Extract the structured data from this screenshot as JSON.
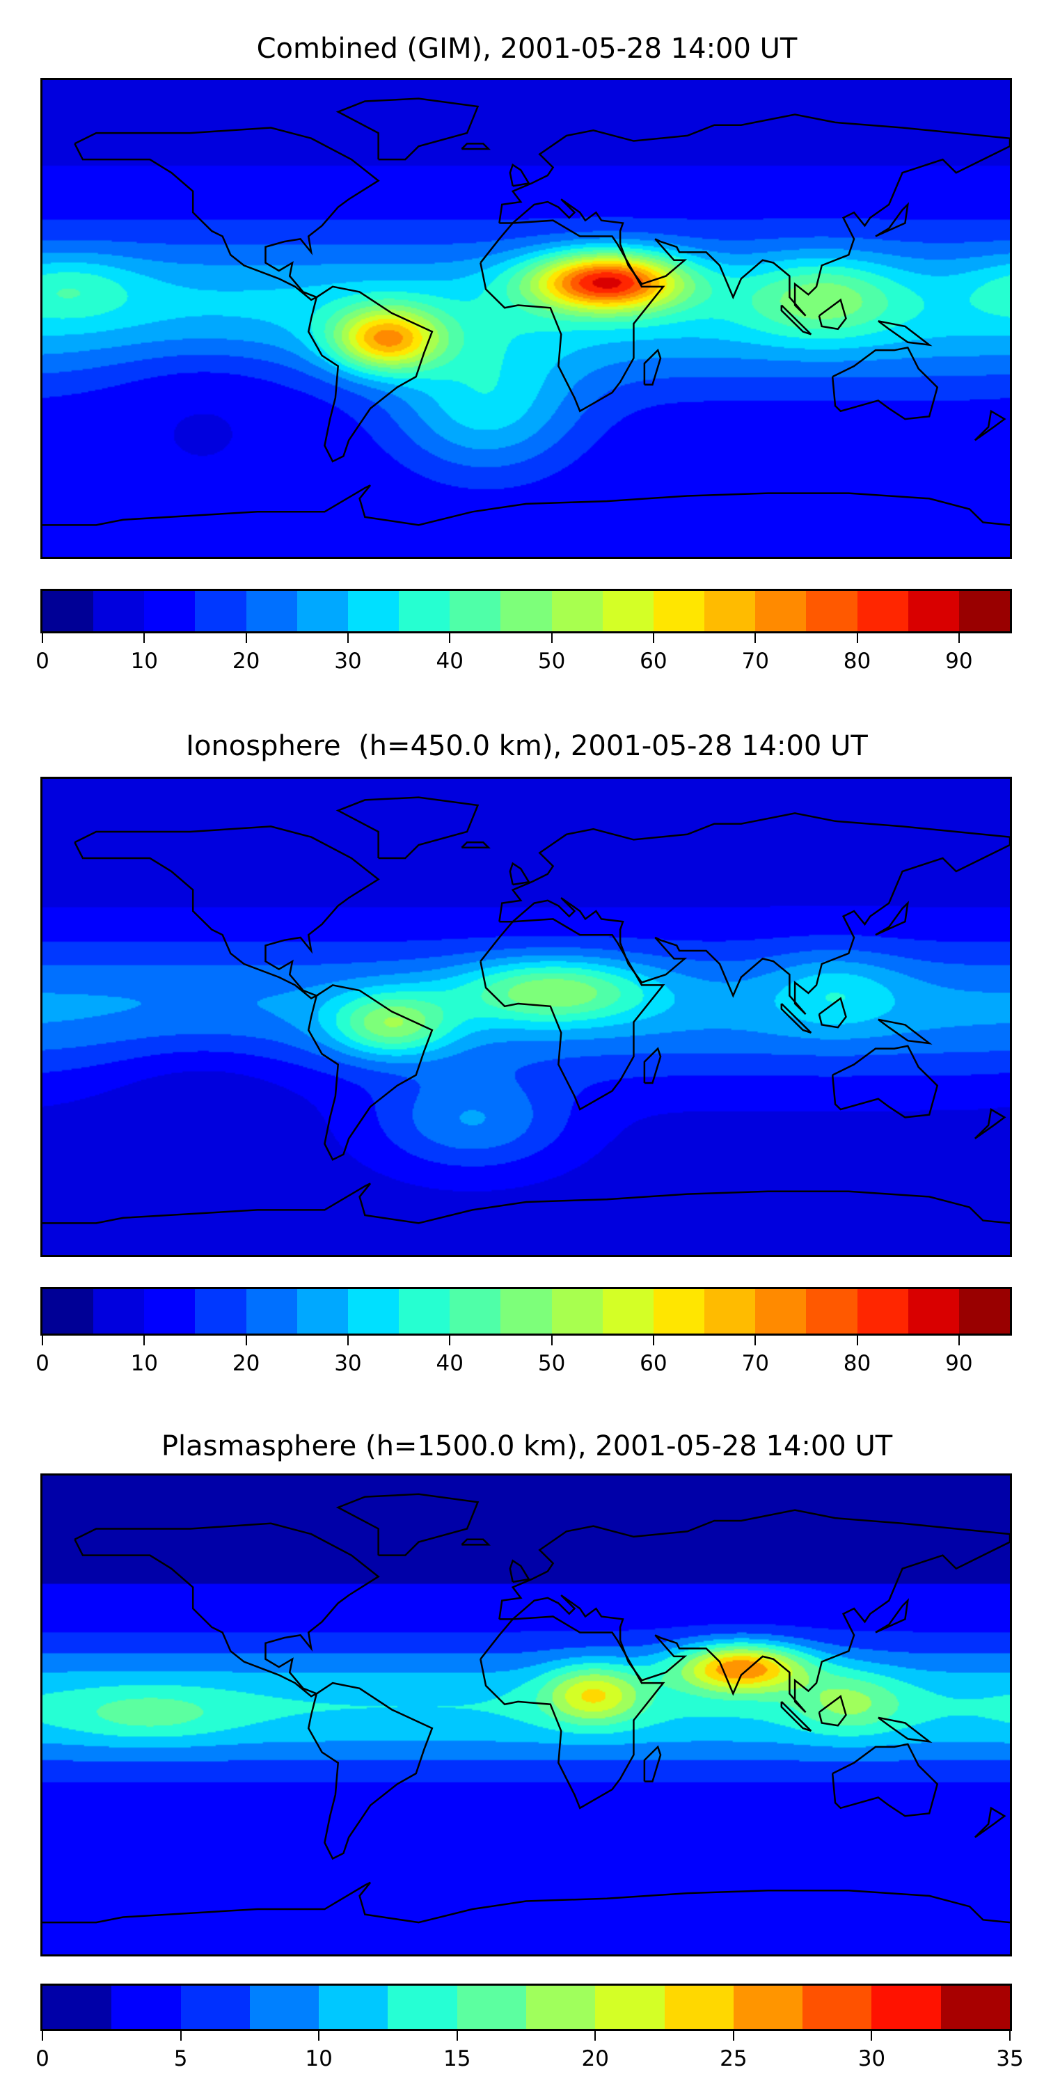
{
  "panels": [
    {
      "title": "Combined (GIM), 2001-05-28 14:00 UT",
      "colorbar": {
        "vmin": 0,
        "vmax": 95,
        "step": 5,
        "ticks": [
          "0",
          "10",
          "20",
          "30",
          "40",
          "50",
          "60",
          "70",
          "80",
          "90"
        ],
        "tick_values": [
          0,
          10,
          20,
          30,
          40,
          50,
          60,
          70,
          80,
          90
        ],
        "colors": [
          "#000096",
          "#0000de",
          "#0000ff",
          "#0038ff",
          "#0070ff",
          "#00a8ff",
          "#00e0ff",
          "#26ffd1",
          "#4fffa8",
          "#7dff7a",
          "#a8ff4f",
          "#d4ff26",
          "#ffe600",
          "#ffbb00",
          "#ff8a00",
          "#ff5900",
          "#ff2600",
          "#d90000",
          "#990000"
        ]
      }
    },
    {
      "title": "Ionosphere  (h=450.0 km), 2001-05-28 14:00 UT",
      "colorbar": {
        "vmin": 0,
        "vmax": 95,
        "step": 5,
        "ticks": [
          "0",
          "10",
          "20",
          "30",
          "40",
          "50",
          "60",
          "70",
          "80",
          "90"
        ],
        "tick_values": [
          0,
          10,
          20,
          30,
          40,
          50,
          60,
          70,
          80,
          90
        ],
        "colors": [
          "#000096",
          "#0000de",
          "#0000ff",
          "#0038ff",
          "#0070ff",
          "#00a8ff",
          "#00e0ff",
          "#26ffd1",
          "#4fffa8",
          "#7dff7a",
          "#a8ff4f",
          "#d4ff26",
          "#ffe600",
          "#ffbb00",
          "#ff8a00",
          "#ff5900",
          "#ff2600",
          "#d90000",
          "#990000"
        ]
      }
    },
    {
      "title": "Plasmasphere (h=1500.0 km), 2001-05-28 14:00 UT",
      "colorbar": {
        "vmin": 0,
        "vmax": 35,
        "step": 2.5,
        "ticks": [
          "0",
          "5",
          "10",
          "15",
          "20",
          "25",
          "30",
          "35"
        ],
        "tick_values": [
          0,
          5,
          10,
          15,
          20,
          25,
          30,
          35
        ],
        "colors": [
          "#0000a8",
          "#0000ff",
          "#0030ff",
          "#0080ff",
          "#00c8ff",
          "#26ffd4",
          "#5cffa0",
          "#a0ff5c",
          "#d4ff26",
          "#ffd800",
          "#ff9500",
          "#ff5200",
          "#ff1200",
          "#a80000"
        ]
      }
    }
  ],
  "chart_data": [
    {
      "type": "heatmap",
      "title": "Combined (GIM), 2001-05-28 14:00 UT",
      "xlabel": "",
      "ylabel": "",
      "colorbar_range": [
        0,
        95
      ],
      "peak_regions": [
        {
          "region": "North/Central Africa",
          "approx_value": 85
        },
        {
          "region": "South America",
          "approx_value": 70
        }
      ]
    },
    {
      "type": "heatmap",
      "title": "Ionosphere  (h=450.0 km), 2001-05-28 14:00 UT",
      "xlabel": "",
      "ylabel": "",
      "colorbar_range": [
        0,
        95
      ],
      "peak_regions": [
        {
          "region": "Equatorial Atlantic / West Africa",
          "approx_value": 60
        }
      ]
    },
    {
      "type": "heatmap",
      "title": "Plasmasphere (h=1500.0 km), 2001-05-28 14:00 UT",
      "xlabel": "",
      "ylabel": "",
      "colorbar_range": [
        0,
        35
      ],
      "peak_regions": [
        {
          "region": "India / Bay of Bengal",
          "approx_value": 31
        },
        {
          "region": "East Africa",
          "approx_value": 24
        }
      ]
    }
  ]
}
